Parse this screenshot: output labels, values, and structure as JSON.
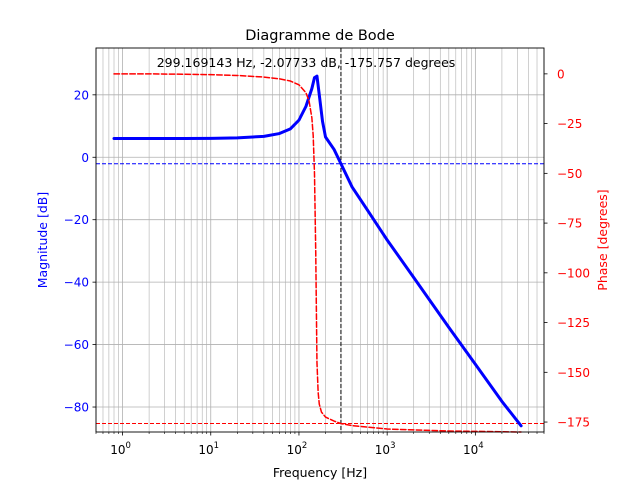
{
  "chart_data": {
    "type": "line",
    "title": "Diagramme de Bode",
    "annotation": "299.169143 Hz, -2.07733 dB, -175.757 degrees",
    "xlabel": "Frequency [Hz]",
    "ylabel_left": "Magnitude [dB]",
    "ylabel_right": "Phase [degrees]",
    "x_scale": "log",
    "xlim": [
      0.5,
      60000
    ],
    "ylim_left": [
      -88,
      35
    ],
    "ylim_right": [
      -180,
      13
    ],
    "x_ticks": [
      {
        "value": 1,
        "base": "10",
        "exp": "0"
      },
      {
        "value": 10,
        "base": "10",
        "exp": "1"
      },
      {
        "value": 100,
        "base": "10",
        "exp": "2"
      },
      {
        "value": 1000,
        "base": "10",
        "exp": "3"
      },
      {
        "value": 10000,
        "base": "10",
        "exp": "4"
      }
    ],
    "y_ticks_left": [
      20,
      0,
      -20,
      -40,
      -60,
      -80
    ],
    "y_tick_labels_left": [
      "20",
      "0",
      "−20",
      "−40",
      "−60",
      "−80"
    ],
    "y_ticks_right": [
      0,
      -25,
      -50,
      -75,
      -100,
      -125,
      -150,
      -175
    ],
    "y_tick_labels_right": [
      "0",
      "−25",
      "−50",
      "−75",
      "−100",
      "−125",
      "−150",
      "−175"
    ],
    "grid": true,
    "series": [
      {
        "axis": "left",
        "style": "solid",
        "color": "#0000ff",
        "x": [
          0.8,
          2,
          5,
          10,
          20,
          40,
          60,
          80,
          100,
          120,
          140,
          150,
          160,
          170,
          185,
          200,
          250,
          299.17,
          400,
          600,
          1000,
          2000,
          5000,
          10000,
          20000,
          33000
        ],
        "y": [
          6.0,
          6.0,
          6.0,
          6.05,
          6.2,
          6.7,
          7.6,
          9.1,
          11.9,
          16.3,
          22.0,
          25.5,
          26.0,
          20.0,
          11.5,
          6.5,
          2.5,
          -2.08,
          -9.5,
          -17.0,
          -26.5,
          -38.5,
          -54.5,
          -66.3,
          -78.2,
          -86.0
        ]
      },
      {
        "axis": "right",
        "style": "dashed",
        "color": "#ff0000",
        "x": [
          0.8,
          2,
          5,
          10,
          20,
          40,
          60,
          80,
          100,
          120,
          130,
          140,
          145,
          150,
          155,
          160,
          165,
          170,
          180,
          200,
          250,
          299.17,
          400,
          1000,
          5000,
          33000
        ],
        "y": [
          0.0,
          0.0,
          -0.2,
          -0.4,
          -0.8,
          -1.6,
          -2.5,
          -3.6,
          -5.5,
          -9.5,
          -13.5,
          -22.0,
          -31.0,
          -50.0,
          -90.0,
          -145.0,
          -160.0,
          -166.0,
          -170.0,
          -172.5,
          -174.5,
          -175.76,
          -176.8,
          -178.5,
          -179.5,
          -180.0
        ]
      }
    ],
    "reference_lines": [
      {
        "axis": "x",
        "value": 299.169143,
        "style": "dashed",
        "color": "#000000"
      },
      {
        "axis": "left",
        "value": -2.07733,
        "style": "dashed",
        "color": "#0000ff"
      },
      {
        "axis": "right",
        "value": -175.757,
        "style": "dashed",
        "color": "#ff0000"
      }
    ],
    "colors": {
      "magnitude": "#0000ff",
      "phase": "#ff0000",
      "axes": "#000000",
      "grid": "#b0b0b0"
    }
  }
}
